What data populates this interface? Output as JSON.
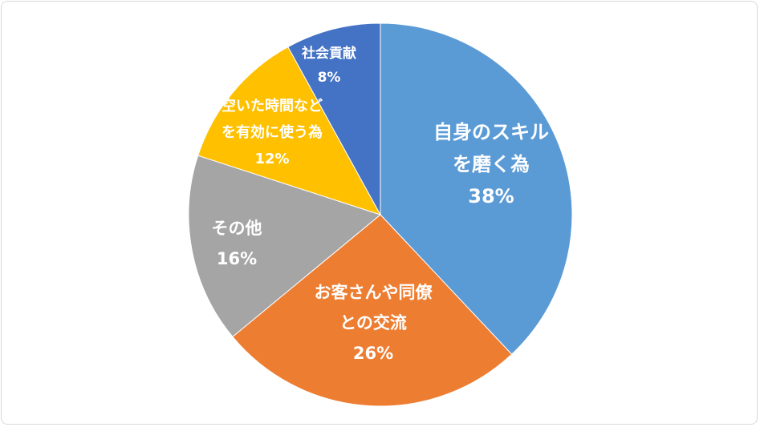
{
  "chart_data": {
    "type": "pie",
    "title": "",
    "slices": [
      {
        "label": [
          "自身のスキル",
          "を磨く為"
        ],
        "value": 38,
        "pct_label": "38%",
        "color": "#5b9bd5"
      },
      {
        "label": [
          "お客さんや同僚",
          "との交流"
        ],
        "value": 26,
        "pct_label": "26%",
        "color": "#ed7d31"
      },
      {
        "label": [
          "その他"
        ],
        "value": 16,
        "pct_label": "16%",
        "color": "#a5a5a5"
      },
      {
        "label": [
          "空いた時間など",
          "を有効に使う為"
        ],
        "value": 12,
        "pct_label": "12%",
        "color": "#ffc000"
      },
      {
        "label": [
          "社会貢献"
        ],
        "value": 8,
        "pct_label": "8%",
        "color": "#4472c4"
      }
    ],
    "legend": "none",
    "start_angle": "12 o'clock",
    "direction": "clockwise"
  }
}
